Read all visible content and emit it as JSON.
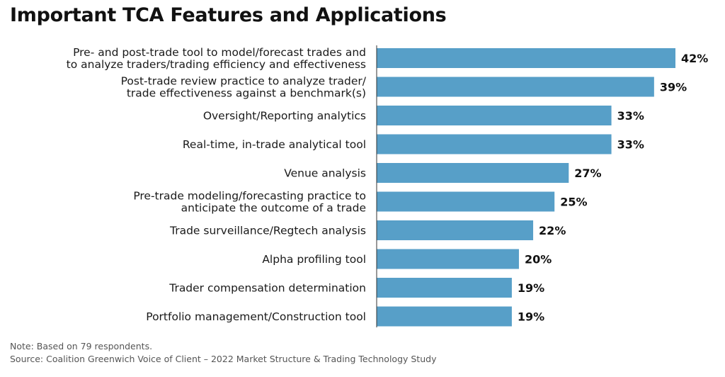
{
  "chart_data": {
    "type": "bar",
    "orientation": "horizontal",
    "title": "Important TCA Features and Applications",
    "categories": [
      "Pre- and post-trade tool to model/forecast trades and\nto analyze traders/trading efficiency and effectiveness",
      "Post-trade review practice to analyze trader/\ntrade effectiveness against a benchmark(s)",
      "Oversight/Reporting analytics",
      "Real-time, in-trade analytical tool",
      "Venue analysis",
      "Pre-trade modeling/forecasting practice to\nanticipate the outcome of a trade",
      "Trade surveillance/Regtech analysis",
      "Alpha profiling tool",
      "Trader compensation determination",
      "Portfolio management/Construction tool"
    ],
    "values": [
      42,
      39,
      33,
      33,
      27,
      25,
      22,
      20,
      19,
      19
    ],
    "value_labels": [
      "42%",
      "39%",
      "33%",
      "33%",
      "27%",
      "25%",
      "22%",
      "20%",
      "19%",
      "19%"
    ],
    "bar_color": "#579fc8",
    "xlim": [
      0,
      42
    ],
    "grid": false,
    "legend": "none"
  },
  "footer": {
    "note": "Note: Based on 79 respondents.",
    "source": "Source: Coalition Greenwich Voice of Client – 2022 Market Structure & Trading Technology Study"
  }
}
